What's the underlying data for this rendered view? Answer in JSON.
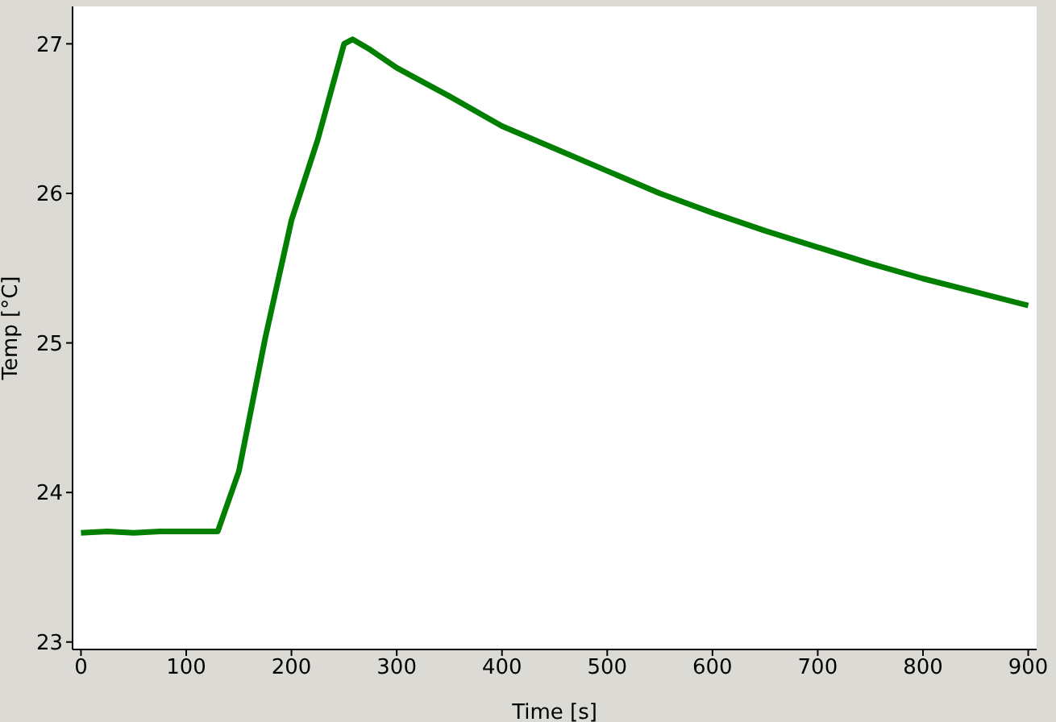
{
  "chart_data": {
    "type": "line",
    "xlabel": "Time [s]",
    "ylabel": "Temp [°C]",
    "x": [
      0,
      25,
      50,
      75,
      100,
      130,
      150,
      175,
      200,
      225,
      250,
      258,
      275,
      300,
      350,
      400,
      450,
      500,
      550,
      600,
      650,
      700,
      750,
      800,
      850,
      900
    ],
    "series": [
      {
        "color": "#007f00",
        "values": [
          23.73,
          23.74,
          23.73,
          23.74,
          23.74,
          23.74,
          24.14,
          25.03,
          25.82,
          26.36,
          27.0,
          27.03,
          26.96,
          26.84,
          26.65,
          26.45,
          26.3,
          26.15,
          26.0,
          25.87,
          25.75,
          25.64,
          25.53,
          25.43,
          25.34,
          25.25
        ]
      }
    ],
    "xlim": [
      -8,
      908
    ],
    "ylim": [
      22.95,
      27.25
    ],
    "xticks": [
      0,
      100,
      200,
      300,
      400,
      500,
      600,
      700,
      800,
      900
    ],
    "yticks": [
      23,
      24,
      25,
      26,
      27
    ],
    "grid": false,
    "legend": false,
    "marker": "none",
    "line_style": "solid"
  }
}
